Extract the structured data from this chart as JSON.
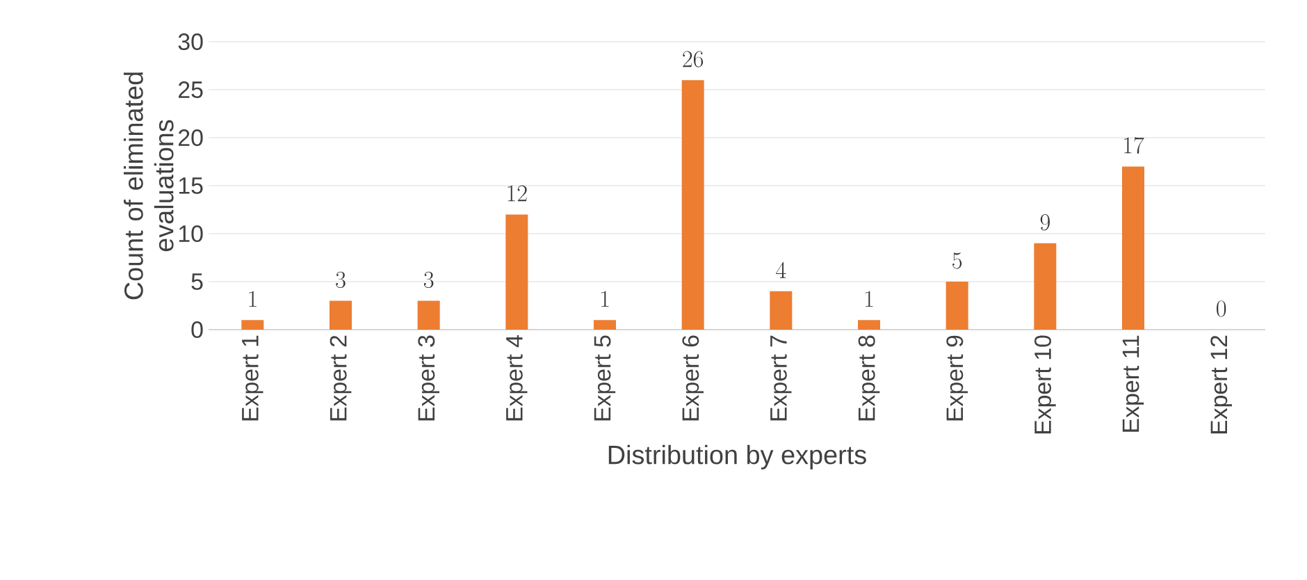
{
  "chart_data": {
    "type": "bar",
    "xlabel": "Distribution by experts",
    "ylabel": "Count of eliminated evaluations",
    "categories": [
      "Expert 1",
      "Expert 2",
      "Expert 3",
      "Expert 4",
      "Expert 5",
      "Expert 6",
      "Expert 7",
      "Expert 8",
      "Expert 9",
      "Expert 10",
      "Expert 11",
      "Expert 12"
    ],
    "values": [
      1,
      3,
      3,
      12,
      1,
      26,
      4,
      1,
      5,
      9,
      17,
      0
    ],
    "color": "#ed7d31",
    "ylim": [
      0,
      30
    ],
    "yticks": [
      0,
      5,
      10,
      15,
      20,
      25,
      30
    ],
    "grid": "y",
    "data_labels": true
  }
}
